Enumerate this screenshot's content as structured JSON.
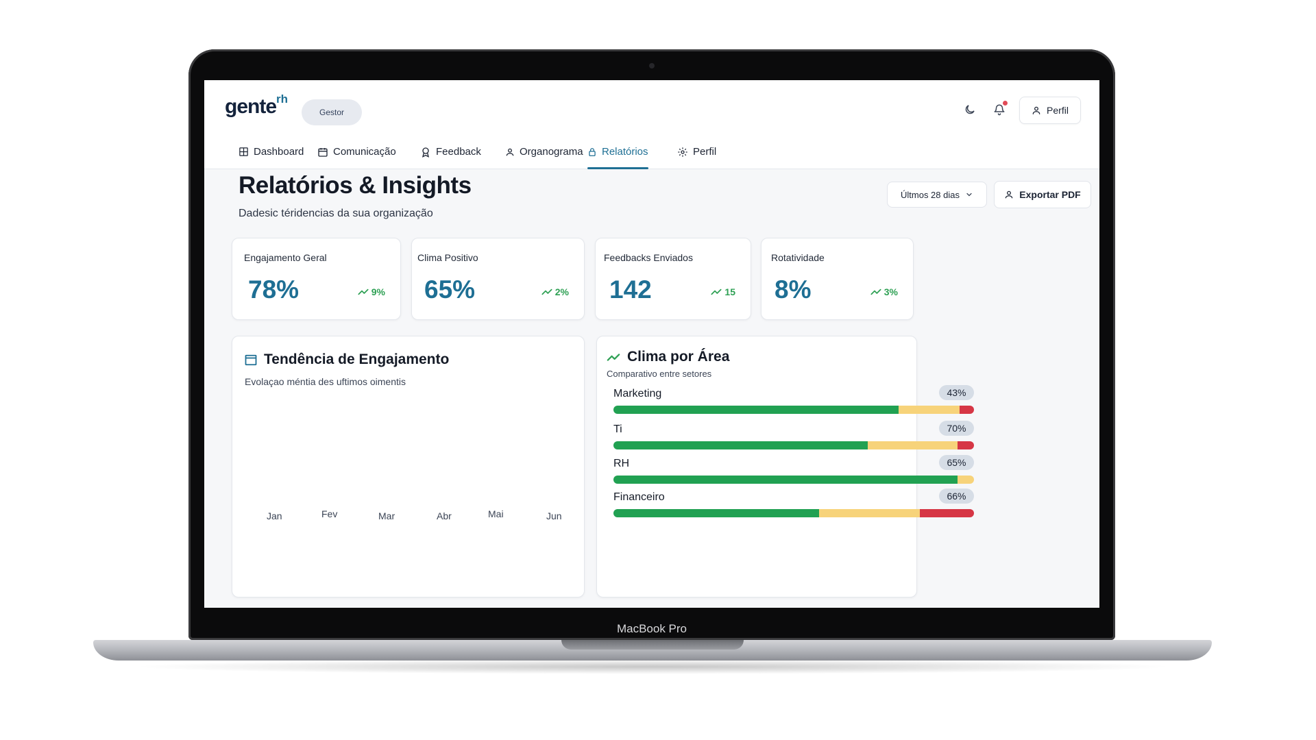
{
  "device": {
    "label": "MacBook Pro"
  },
  "header": {
    "logo": "gente",
    "logo_sup": "rh",
    "role": "Gestor",
    "profile_label": "Perfil"
  },
  "nav": {
    "tabs": [
      {
        "label": "Dashboard",
        "icon": "grid-icon",
        "active": false
      },
      {
        "label": "Comunicação",
        "icon": "calendar-icon",
        "active": false
      },
      {
        "label": "Feedback",
        "icon": "award-icon",
        "active": false
      },
      {
        "label": "Organograma",
        "icon": "user-icon",
        "active": false
      },
      {
        "label": "Relatórios",
        "icon": "lock-icon",
        "active": true
      },
      {
        "label": "Perfil",
        "icon": "gear-icon",
        "active": false
      }
    ]
  },
  "page": {
    "title": "Relatórios & Insights",
    "subtitle": "Dadesic téridencias da sua organização",
    "period": "Últmos 28 dias",
    "export_label": "Exportar PDF"
  },
  "kpis": [
    {
      "label": "Engajamento Geral",
      "value": "78%",
      "trend": "9%"
    },
    {
      "label": "Clima Positivo",
      "value": "65%",
      "trend": "2%"
    },
    {
      "label": "Feedbacks Enviados",
      "value": "142",
      "trend": "15"
    },
    {
      "label": "Rotatividade",
      "value": "8%",
      "trend": "3%"
    }
  ],
  "trend_panel": {
    "title": "Tendência de Engajamento",
    "subtitle": "Evolaçao méntia des uftimos oimentis",
    "months": [
      "Jan",
      "Fev",
      "Mar",
      "Abr",
      "Mai",
      "Jun"
    ]
  },
  "climate_panel": {
    "title": "Clima por Área",
    "subtitle": "Comparativo entre setores",
    "areas": [
      {
        "name": "Marketing",
        "badge": "43%",
        "green": 0.79,
        "yellow": 0.17,
        "red": 0.04
      },
      {
        "name": "Ti",
        "badge": "70%",
        "green": 0.705,
        "yellow": 0.25,
        "red": 0.045
      },
      {
        "name": "RH",
        "badge": "65%",
        "green": 0.955,
        "yellow": 0.045,
        "red": 0
      },
      {
        "name": "Financeiro",
        "badge": "66%",
        "green": 0.57,
        "yellow": 0.28,
        "red": 0.15
      }
    ]
  },
  "colors": {
    "accent": "#1e6f94",
    "positive": "#2ea054",
    "bar_green": "#21a152",
    "bar_yellow": "#f7d37a",
    "bar_red": "#d63645"
  }
}
